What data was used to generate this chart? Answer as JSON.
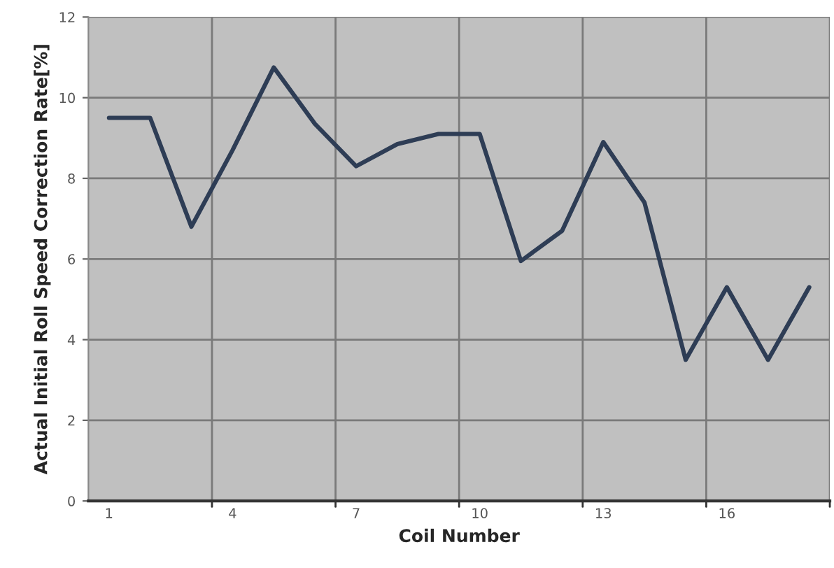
{
  "chart_data": {
    "type": "line",
    "xlabel": "Coil Number",
    "ylabel": "Actual Initial Roll Speed Correction Rate[%]",
    "categories": [
      "1",
      null,
      null,
      "4",
      null,
      null,
      "7",
      null,
      null,
      "10",
      null,
      null,
      "13",
      null,
      null,
      "16",
      null,
      null
    ],
    "series": [
      {
        "color": "#2e3d55",
        "values": [
          9.5,
          9.5,
          6.8,
          8.7,
          10.75,
          9.35,
          8.3,
          8.85,
          9.1,
          9.1,
          5.95,
          6.7,
          8.9,
          7.4,
          3.5,
          5.3,
          3.5,
          5.3
        ]
      }
    ],
    "ylim": [
      0,
      12
    ],
    "yticks": [
      0,
      2,
      4,
      6,
      8,
      10,
      12
    ],
    "grid": true,
    "marker": "none",
    "line_style": "solid",
    "legend": false
  }
}
